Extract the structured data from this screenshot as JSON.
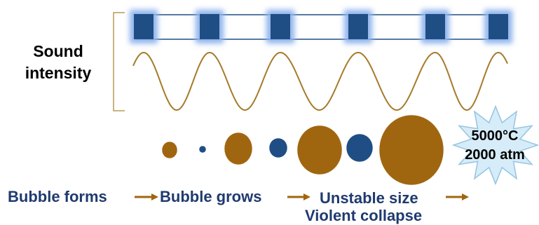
{
  "colors": {
    "bubble_growing": "#a0660f",
    "bubble_shrinking": "#1f4e84",
    "wave": "#a67a2a",
    "pulse_box": "#1f4e84",
    "pulse_glow": "#8fb3ec",
    "arrow": "#a0660f",
    "text_dark_blue": "#1f3a6e",
    "burst_fill": "#d6ecf8",
    "burst_stroke": "#93c5e2"
  },
  "labels": {
    "sound_intensity_line1": "Sound",
    "sound_intensity_line2": "intensity",
    "stage1": "Bubble forms",
    "stage2": "Bubble grows",
    "stage3_line1": "Unstable size",
    "stage3_line2": "Violent collapse",
    "temperature": "5000°C",
    "pressure": "2000 atm"
  },
  "icons": {
    "arrows": "right-arrow-icon",
    "burst": "starburst-icon"
  }
}
